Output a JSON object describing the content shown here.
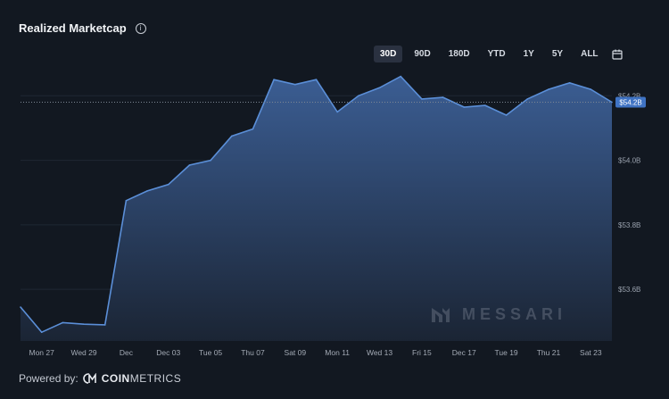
{
  "header": {
    "title": "Realized Marketcap",
    "info_icon": "info-icon"
  },
  "ranges": [
    {
      "label": "30D",
      "active": true
    },
    {
      "label": "90D",
      "active": false
    },
    {
      "label": "180D",
      "active": false
    },
    {
      "label": "YTD",
      "active": false
    },
    {
      "label": "1Y",
      "active": false
    },
    {
      "label": "5Y",
      "active": false
    },
    {
      "label": "ALL",
      "active": false
    }
  ],
  "footer": {
    "powered_by": "Powered by:",
    "brand_bold": "COIN",
    "brand_light": "METRICS"
  },
  "watermark": "MESSARI",
  "colors": {
    "line": "#5b8fd8",
    "fill_top": "#3d6199",
    "fill_bottom": "#1b2535",
    "badge": "#3f73c4",
    "background": "#121821"
  },
  "chart_data": {
    "type": "area",
    "x": [
      "Nov 26",
      "Nov 27",
      "Nov 28",
      "Nov 29",
      "Nov 30",
      "Dec 01",
      "Dec 02",
      "Dec 03",
      "Dec 04",
      "Dec 05",
      "Dec 06",
      "Dec 07",
      "Dec 08",
      "Dec 09",
      "Dec 10",
      "Dec 11",
      "Dec 12",
      "Dec 13",
      "Dec 14",
      "Dec 15",
      "Dec 16",
      "Dec 17",
      "Dec 18",
      "Dec 19",
      "Dec 20",
      "Dec 21",
      "Dec 22",
      "Dec 23",
      "Dec 24"
    ],
    "series": [
      {
        "values": [
          53.545,
          53.467,
          53.497,
          53.492,
          53.49,
          53.875,
          53.905,
          53.925,
          53.985,
          54.0,
          54.075,
          54.097,
          54.25,
          54.235,
          54.25,
          54.15,
          54.2,
          54.225,
          54.26,
          54.19,
          54.195,
          54.165,
          54.17,
          54.14,
          54.19,
          54.22,
          54.24,
          54.22,
          54.18
        ]
      }
    ],
    "x_tick_labels": [
      "Mon 27",
      "Wed 29",
      "Dec",
      "Dec 03",
      "Tue 05",
      "Thu 07",
      "Sat 09",
      "Mon 11",
      "Wed 13",
      "Fri 15",
      "Dec 17",
      "Tue 19",
      "Thu 21",
      "Sat 23"
    ],
    "y_tick_labels": [
      "$53.6B",
      "$53.8B",
      "$54.0B",
      "$54.2B"
    ],
    "y_ticks": [
      53.6,
      53.8,
      54.0,
      54.2
    ],
    "ylim": [
      53.44,
      54.27
    ],
    "current_value_label": "$54.2B",
    "grid": true,
    "legend": "none"
  }
}
